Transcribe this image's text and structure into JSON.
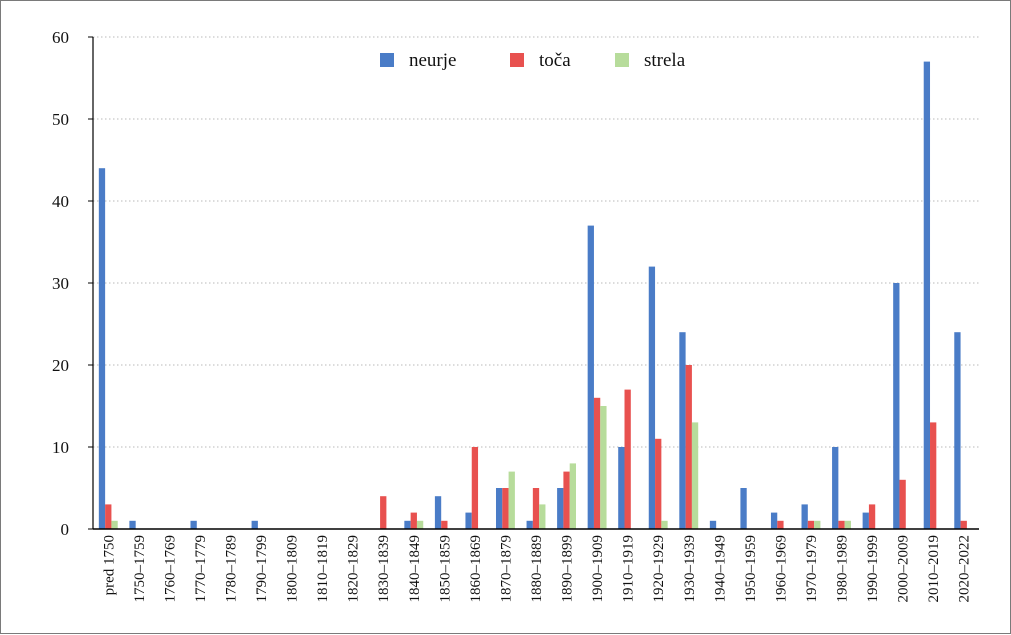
{
  "chart_data": {
    "type": "bar",
    "title": "",
    "xlabel": "",
    "ylabel": "",
    "ylim": [
      0,
      60
    ],
    "yticks": [
      0,
      10,
      20,
      30,
      40,
      50,
      60
    ],
    "grid": "horizontal dotted",
    "legend_position": "top-center",
    "categories": [
      "pred 1750",
      "1750–1759",
      "1760–1769",
      "1770–1779",
      "1780–1789",
      "1790–1799",
      "1800–1809",
      "1810–1819",
      "1820–1829",
      "1830–1839",
      "1840–1849",
      "1850–1859",
      "1860–1869",
      "1870–1879",
      "1880–1889",
      "1890–1899",
      "1900–1909",
      "1910–1919",
      "1920–1929",
      "1930–1939",
      "1940–1949",
      "1950–1959",
      "1960–1969",
      "1970–1979",
      "1980–1989",
      "1990–1999",
      "2000–2009",
      "2010–2019",
      "2020–2022"
    ],
    "series": [
      {
        "name": "neurje",
        "color": "#4a7cc7",
        "values": [
          44,
          1,
          0,
          1,
          0,
          1,
          0,
          0,
          0,
          0,
          1,
          4,
          2,
          5,
          1,
          5,
          37,
          10,
          32,
          24,
          1,
          5,
          2,
          3,
          10,
          2,
          30,
          57,
          24
        ]
      },
      {
        "name": "toča",
        "color": "#e8514f",
        "values": [
          3,
          0,
          0,
          0,
          0,
          0,
          0,
          0,
          0,
          4,
          2,
          1,
          10,
          5,
          5,
          7,
          16,
          17,
          11,
          20,
          0,
          0,
          1,
          1,
          1,
          3,
          6,
          13,
          1
        ]
      },
      {
        "name": "strela",
        "color": "#b7dc9b",
        "values": [
          1,
          0,
          0,
          0,
          0,
          0,
          0,
          0,
          0,
          0,
          1,
          0,
          0,
          7,
          3,
          8,
          15,
          0,
          1,
          13,
          0,
          0,
          0,
          1,
          1,
          0,
          0,
          0,
          0
        ]
      }
    ]
  }
}
